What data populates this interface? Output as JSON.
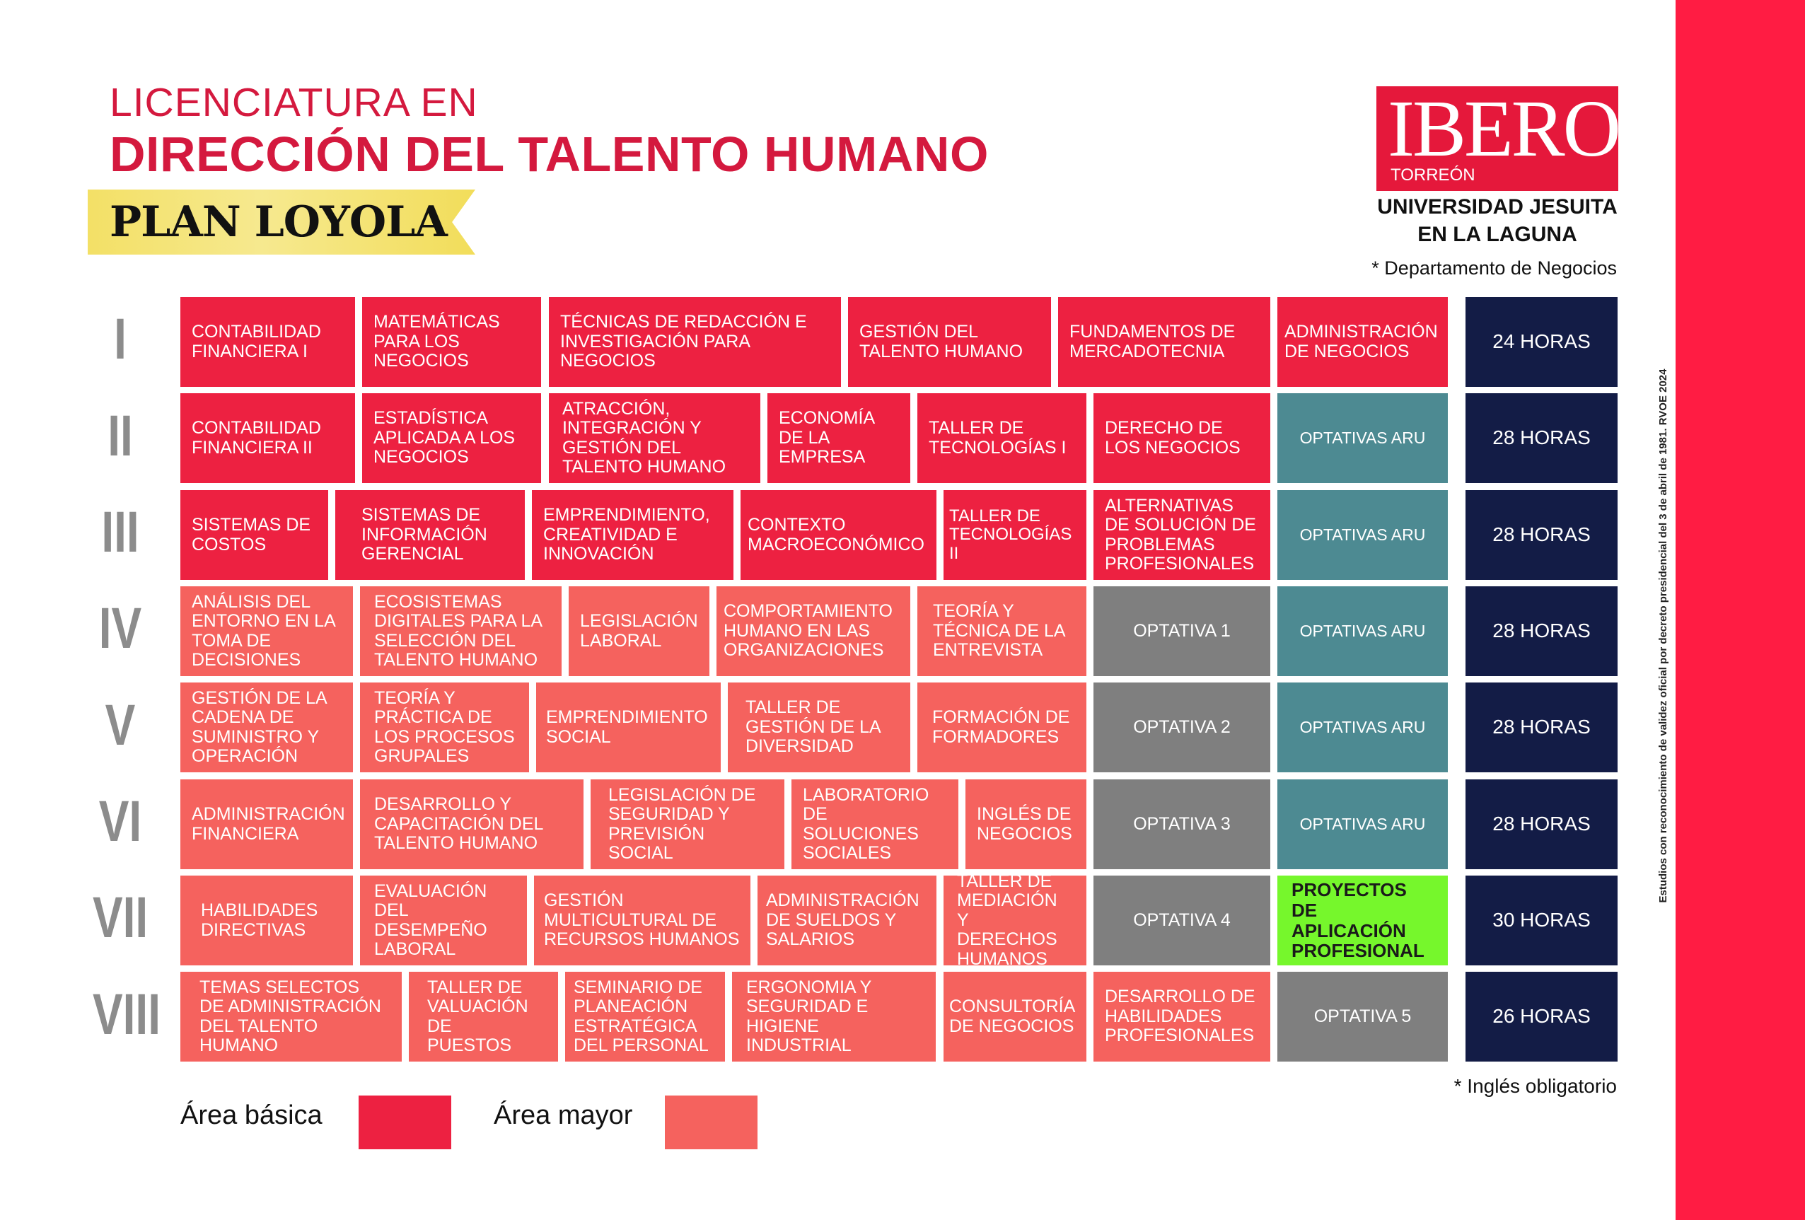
{
  "header": {
    "title_line1": "LICENCIATURA EN",
    "title_line2": "DIRECCIÓN DEL TALENTO HUMANO",
    "plan": "PLAN LOYOLA"
  },
  "logo": {
    "wordmark": "IBERO",
    "city": "TORREÓN",
    "university_line1": "UNIVERSIDAD JESUITA",
    "university_line2": "EN LA LAGUNA",
    "department_note": "* Departamento de Negocios"
  },
  "legal_note": "Estudios con reconocimiento de validez oficial por decreto presidencial del 3 de abril de 1981. RVOE 2024",
  "colors": {
    "area_basica": "#ed2141",
    "area_mayor": "#f5625e",
    "optativa": "#7f7f7f",
    "optativas_aru": "#4d8a92",
    "proyectos": "#76f72c",
    "horas": "#131c46",
    "side_bar": "#ff1c43"
  },
  "semesters": [
    {
      "numeral": "I",
      "courses": [
        {
          "name": "CONTABILIDAD FINANCIERA I",
          "area": "basica"
        },
        {
          "name": "MATEMÁTICAS PARA LOS NEGOCIOS",
          "area": "basica"
        },
        {
          "name": "TÉCNICAS DE REDACCIÓN E INVESTIGACIÓN PARA NEGOCIOS",
          "area": "basica"
        },
        {
          "name": "GESTIÓN DEL TALENTO HUMANO",
          "area": "basica"
        },
        {
          "name": "FUNDAMENTOS DE MERCADOTECNIA",
          "area": "basica"
        },
        {
          "name": "ADMINISTRACIÓN DE NEGOCIOS",
          "area": "basica"
        }
      ],
      "hours": "24 HORAS"
    },
    {
      "numeral": "II",
      "courses": [
        {
          "name": "CONTABILIDAD FINANCIERA II",
          "area": "basica"
        },
        {
          "name": "ESTADÍSTICA APLICADA A LOS NEGOCIOS",
          "area": "basica"
        },
        {
          "name": "ATRACCIÓN, INTEGRACIÓN Y GESTIÓN DEL TALENTO HUMANO",
          "area": "basica"
        },
        {
          "name": "ECONOMÍA DE LA EMPRESA",
          "area": "basica"
        },
        {
          "name": "TALLER DE TECNOLOGÍAS I",
          "area": "basica"
        },
        {
          "name": "DERECHO DE LOS NEGOCIOS",
          "area": "basica"
        },
        {
          "name": "OPTATIVAS ARU",
          "area": "aru"
        }
      ],
      "hours": "28 HORAS"
    },
    {
      "numeral": "III",
      "courses": [
        {
          "name": "SISTEMAS DE COSTOS",
          "area": "basica"
        },
        {
          "name": "SISTEMAS DE INFORMACIÓN GERENCIAL",
          "area": "basica"
        },
        {
          "name": "EMPRENDIMIENTO, CREATIVIDAD E INNOVACIÓN",
          "area": "basica"
        },
        {
          "name": "CONTEXTO MACROECONÓMICO",
          "area": "basica"
        },
        {
          "name": "TALLER DE TECNOLOGÍAS II",
          "area": "basica"
        },
        {
          "name": "ALTERNATIVAS DE SOLUCIÓN DE PROBLEMAS PROFESIONALES",
          "area": "basica"
        },
        {
          "name": "OPTATIVAS ARU",
          "area": "aru"
        }
      ],
      "hours": "28 HORAS"
    },
    {
      "numeral": "IV",
      "courses": [
        {
          "name": "ANÁLISIS DEL ENTORNO EN LA TOMA DE DECISIONES",
          "area": "mayor"
        },
        {
          "name": "ECOSISTEMAS DIGITALES PARA LA SELECCIÓN DEL TALENTO HUMANO",
          "area": "mayor"
        },
        {
          "name": "LEGISLACIÓN LABORAL",
          "area": "mayor"
        },
        {
          "name": "COMPORTAMIENTO HUMANO EN LAS ORGANIZACIONES",
          "area": "mayor"
        },
        {
          "name": "TEORÍA Y TÉCNICA DE LA ENTREVISTA",
          "area": "mayor"
        },
        {
          "name": "OPTATIVA 1",
          "area": "optativa"
        },
        {
          "name": "OPTATIVAS ARU",
          "area": "aru"
        }
      ],
      "hours": "28 HORAS"
    },
    {
      "numeral": "V",
      "courses": [
        {
          "name": "GESTIÓN DE LA CADENA DE SUMINISTRO Y OPERACIÓN",
          "area": "mayor"
        },
        {
          "name": "TEORÍA Y PRÁCTICA DE LOS PROCESOS GRUPALES",
          "area": "mayor"
        },
        {
          "name": "EMPRENDIMIENTO SOCIAL",
          "area": "mayor"
        },
        {
          "name": "TALLER DE GESTIÓN DE LA DIVERSIDAD",
          "area": "mayor"
        },
        {
          "name": "FORMACIÓN DE FORMADORES",
          "area": "mayor"
        },
        {
          "name": "OPTATIVA 2",
          "area": "optativa"
        },
        {
          "name": "OPTATIVAS ARU",
          "area": "aru"
        }
      ],
      "hours": "28 HORAS"
    },
    {
      "numeral": "VI",
      "courses": [
        {
          "name": "ADMINISTRACIÓN FINANCIERA",
          "area": "mayor"
        },
        {
          "name": "DESARROLLO Y CAPACITACIÓN DEL TALENTO HUMANO",
          "area": "mayor"
        },
        {
          "name": "LEGISLACIÓN DE SEGURIDAD Y PREVISIÓN SOCIAL",
          "area": "mayor"
        },
        {
          "name": "LABORATORIO DE SOLUCIONES SOCIALES",
          "area": "mayor"
        },
        {
          "name": "INGLÉS DE NEGOCIOS",
          "area": "mayor"
        },
        {
          "name": "OPTATIVA 3",
          "area": "optativa"
        },
        {
          "name": "OPTATIVAS ARU",
          "area": "aru"
        }
      ],
      "hours": "28 HORAS"
    },
    {
      "numeral": "VII",
      "courses": [
        {
          "name": "HABILIDADES DIRECTIVAS",
          "area": "mayor"
        },
        {
          "name": "EVALUACIÓN DEL DESEMPEÑO LABORAL",
          "area": "mayor"
        },
        {
          "name": "GESTIÓN MULTICULTURAL DE RECURSOS HUMANOS",
          "area": "mayor"
        },
        {
          "name": "ADMINISTRACIÓN DE SUELDOS Y SALARIOS",
          "area": "mayor"
        },
        {
          "name": "TALLER DE MEDIACIÓN Y DERECHOS HUMANOS",
          "area": "mayor"
        },
        {
          "name": "OPTATIVA 4",
          "area": "optativa"
        },
        {
          "name": "PROYECTOS DE APLICACIÓN PROFESIONAL",
          "area": "proyectos"
        }
      ],
      "hours": "30 HORAS"
    },
    {
      "numeral": "VIII",
      "courses": [
        {
          "name": "TEMAS SELECTOS DE ADMINISTRACIÓN DEL TALENTO HUMANO",
          "area": "mayor"
        },
        {
          "name": "TALLER DE VALUACIÓN DE PUESTOS",
          "area": "mayor"
        },
        {
          "name": "SEMINARIO DE PLANEACIÓN ESTRATÉGICA DEL PERSONAL",
          "area": "mayor"
        },
        {
          "name": "ERGONOMIA Y SEGURIDAD E HIGIENE INDUSTRIAL",
          "area": "mayor"
        },
        {
          "name": "CONSULTORÍA DE NEGOCIOS",
          "area": "mayor"
        },
        {
          "name": "DESARROLLO DE HABILIDADES PROFESIONALES",
          "area": "mayor"
        },
        {
          "name": "OPTATIVA 5",
          "area": "optativa"
        }
      ],
      "hours": "26 HORAS"
    }
  ],
  "footer": {
    "english_note": "* Inglés obligatorio",
    "legend_basic": "Área básica",
    "legend_major": "Área mayor"
  }
}
